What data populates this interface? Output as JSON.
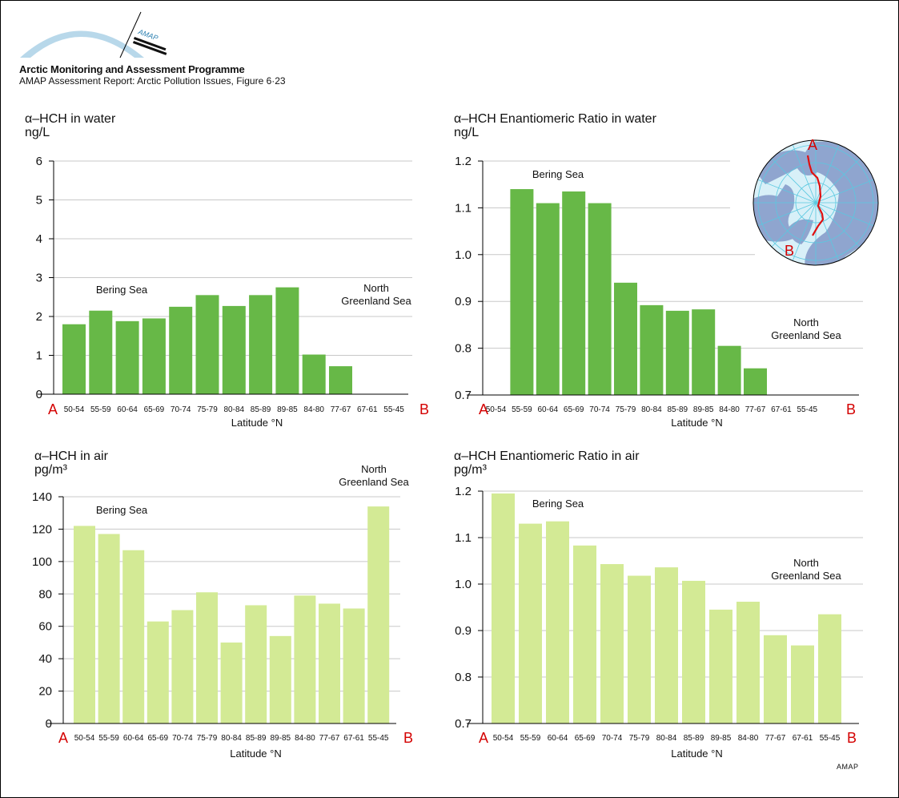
{
  "header": {
    "logo_text": "AMAP",
    "organization": "Arctic Monitoring and Assessment Programme",
    "report": "AMAP Assessment Report: Arctic Pollution Issues, Figure 6·23"
  },
  "footer": {
    "credit": "AMAP"
  },
  "colors": {
    "water_bar": "#67b847",
    "air_bar": "#d3ea95",
    "endpoint_label": "#d40000",
    "gridline": "#c8c8c8",
    "map_land": "#8fa5cf",
    "map_sea": "#d8f0f8",
    "map_grid": "#5ac8e0",
    "map_track": "#e01010"
  },
  "inset_map": {
    "label_start": "A",
    "label_end": "B",
    "description": "Arctic polar projection with cruise track from A to B"
  },
  "chart_data": [
    {
      "type": "bar",
      "title": "α–HCH in water",
      "ylabel": "ng/L",
      "xlabel": "Latitude °N",
      "start_label": "A",
      "end_label": "B",
      "categories": [
        "50-54",
        "55-59",
        "60-64",
        "65-69",
        "70-74",
        "75-79",
        "80-84",
        "85-89",
        "89-85",
        "84-80",
        "77-67",
        "67-61",
        "55-45"
      ],
      "values": [
        1.8,
        2.15,
        1.88,
        1.95,
        2.25,
        2.55,
        2.27,
        2.55,
        2.75,
        1.02,
        0.72,
        null,
        null
      ],
      "ylim": [
        0,
        6
      ],
      "yticks": [
        "0",
        "1",
        "2",
        "3",
        "4",
        "5",
        "6"
      ],
      "ytick_values": [
        0,
        1,
        2,
        3,
        4,
        5,
        6
      ],
      "grid": true,
      "annotations": [
        {
          "text": [
            "Bering Sea"
          ],
          "position": "upper-left"
        },
        {
          "text": [
            "North",
            "Greenland Sea"
          ],
          "position": "upper-right"
        }
      ]
    },
    {
      "type": "bar",
      "title": "α–HCH Enantiomeric Ratio in water",
      "ylabel": "ng/L",
      "xlabel": "Latitude °N",
      "start_label": "A",
      "end_label": "B",
      "categories": [
        "50-54",
        "55-59",
        "60-64",
        "65-69",
        "70-74",
        "75-79",
        "80-84",
        "85-89",
        "89-85",
        "84-80",
        "77-67",
        "67-61",
        "55-45"
      ],
      "values": [
        null,
        1.14,
        1.11,
        1.135,
        1.11,
        0.94,
        0.892,
        0.88,
        0.883,
        0.805,
        0.757,
        null,
        null
      ],
      "ylim": [
        0.7,
        1.2
      ],
      "yticks": [
        "0.7",
        "0.8",
        "0.9",
        "1.0",
        "1.1",
        "1.2"
      ],
      "ytick_values": [
        0.7,
        0.8,
        0.9,
        1.0,
        1.1,
        1.2
      ],
      "grid": true,
      "annotations": [
        {
          "text": [
            "Bering Sea"
          ],
          "position": "upper-left"
        },
        {
          "text": [
            "North",
            "Greenland Sea"
          ],
          "position": "right"
        }
      ]
    },
    {
      "type": "bar",
      "title": "α–HCH in air",
      "ylabel": "pg/m³",
      "xlabel": "Latitude °N",
      "start_label": "A",
      "end_label": "B",
      "categories": [
        "50-54",
        "55-59",
        "60-64",
        "65-69",
        "70-74",
        "75-79",
        "80-84",
        "85-89",
        "89-85",
        "84-80",
        "77-67",
        "67-61",
        "55-45"
      ],
      "values": [
        122,
        117,
        107,
        63,
        70,
        81,
        50,
        73,
        54,
        79,
        74,
        71,
        134
      ],
      "ylim": [
        0,
        140
      ],
      "yticks": [
        "0",
        "20",
        "40",
        "60",
        "80",
        "100",
        "120",
        "140"
      ],
      "ytick_values": [
        0,
        20,
        40,
        60,
        80,
        100,
        120,
        140
      ],
      "grid": true,
      "annotations": [
        {
          "text": [
            "Bering Sea"
          ],
          "position": "upper-left"
        },
        {
          "text": [
            "North",
            "Greenland Sea"
          ],
          "position": "top-right"
        }
      ]
    },
    {
      "type": "bar",
      "title": "α–HCH Enantiomeric Ratio in air",
      "ylabel": "pg/m³",
      "xlabel": "Latitude °N",
      "start_label": "A",
      "end_label": "B",
      "categories": [
        "50-54",
        "55-59",
        "60-64",
        "65-69",
        "70-74",
        "75-79",
        "80-84",
        "85-89",
        "89-85",
        "84-80",
        "77-67",
        "67-61",
        "55-45"
      ],
      "values": [
        1.195,
        1.13,
        1.135,
        1.083,
        1.043,
        1.018,
        1.036,
        1.007,
        0.945,
        0.962,
        0.89,
        0.868,
        0.935
      ],
      "ylim": [
        0.7,
        1.2
      ],
      "yticks": [
        "0.7",
        "0.8",
        "0.9",
        "1.0",
        "1.1",
        "1.2"
      ],
      "ytick_values": [
        0.7,
        0.8,
        0.9,
        1.0,
        1.1,
        1.2
      ],
      "grid": true,
      "annotations": [
        {
          "text": [
            "Bering Sea"
          ],
          "position": "upper-left"
        },
        {
          "text": [
            "North",
            "Greenland Sea"
          ],
          "position": "right"
        }
      ]
    }
  ]
}
